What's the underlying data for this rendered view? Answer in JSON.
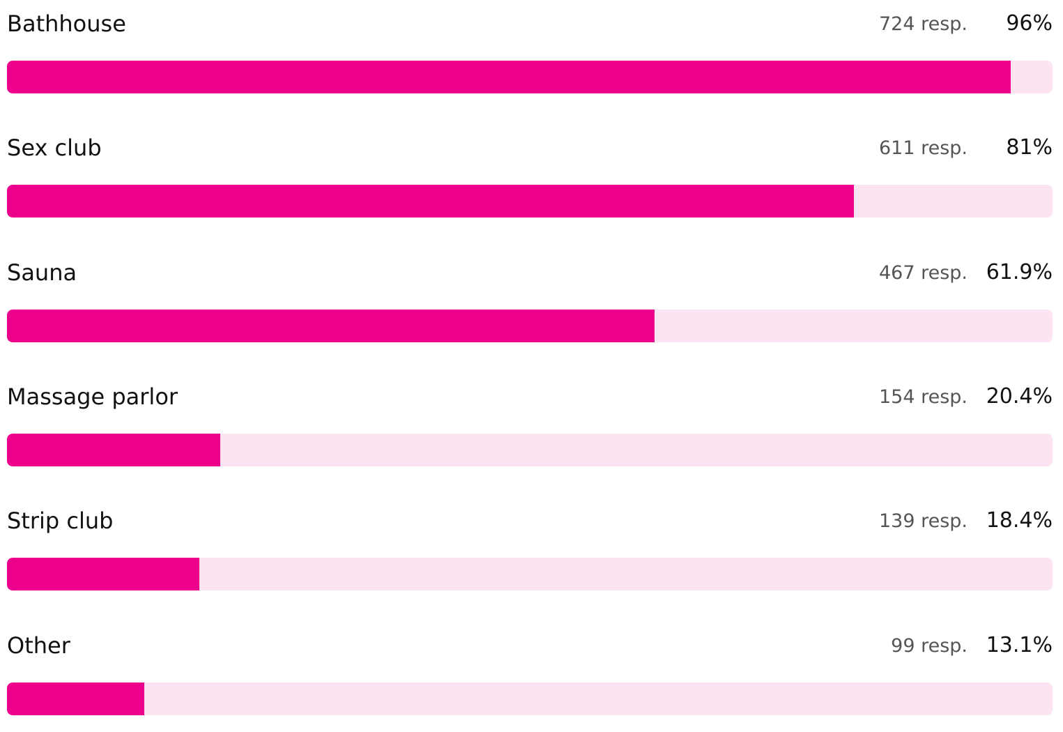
{
  "colors": {
    "bar_fill": "#ED008C",
    "bar_track": "#FCE4F2"
  },
  "chart_data": {
    "type": "bar",
    "orientation": "horizontal",
    "categories": [
      "Bathhouse",
      "Sex club",
      "Sauna",
      "Massage parlor",
      "Strip club",
      "Other"
    ],
    "responses": [
      "724 resp.",
      "611 resp.",
      "467 resp.",
      "154 resp.",
      "139 resp.",
      "99 resp."
    ],
    "percent_labels": [
      "96%",
      "81%",
      "61.9%",
      "20.4%",
      "18.4%",
      "13.1%"
    ],
    "values": [
      96,
      81,
      61.9,
      20.4,
      18.4,
      13.1
    ],
    "xlim": [
      0,
      100
    ],
    "grid": false,
    "legend": "none"
  }
}
